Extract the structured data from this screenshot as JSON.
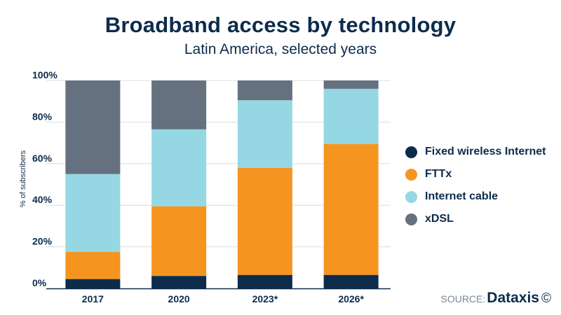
{
  "title": "Broadband access by technology",
  "subtitle": "Latin America, selected years",
  "chart_data": {
    "type": "bar",
    "stacked": true,
    "categories": [
      "2017",
      "2020",
      "2023*",
      "2026*"
    ],
    "series": [
      {
        "name": "Fixed wireless Internet",
        "color": "#0d2c4c",
        "values": [
          4.5,
          6,
          6.5,
          6.5
        ]
      },
      {
        "name": "FTTx",
        "color": "#f5951f",
        "values": [
          13,
          33.5,
          51.5,
          63
        ]
      },
      {
        "name": "Internet cable",
        "color": "#95d8e3",
        "values": [
          37.5,
          37,
          32.5,
          26.5
        ]
      },
      {
        "name": "xDSL",
        "color": "#66717f",
        "values": [
          45,
          23.5,
          9.5,
          4
        ]
      }
    ],
    "ylabel": "% of subscribers",
    "xlabel": "",
    "ylim": [
      0,
      100
    ],
    "yticks": [
      "0%",
      "20%",
      "40%",
      "60%",
      "80%",
      "100%"
    ],
    "grid": true,
    "legend": "right"
  },
  "source": {
    "label": "SOURCE:",
    "brand": "Dataxis",
    "copyright": "©"
  }
}
